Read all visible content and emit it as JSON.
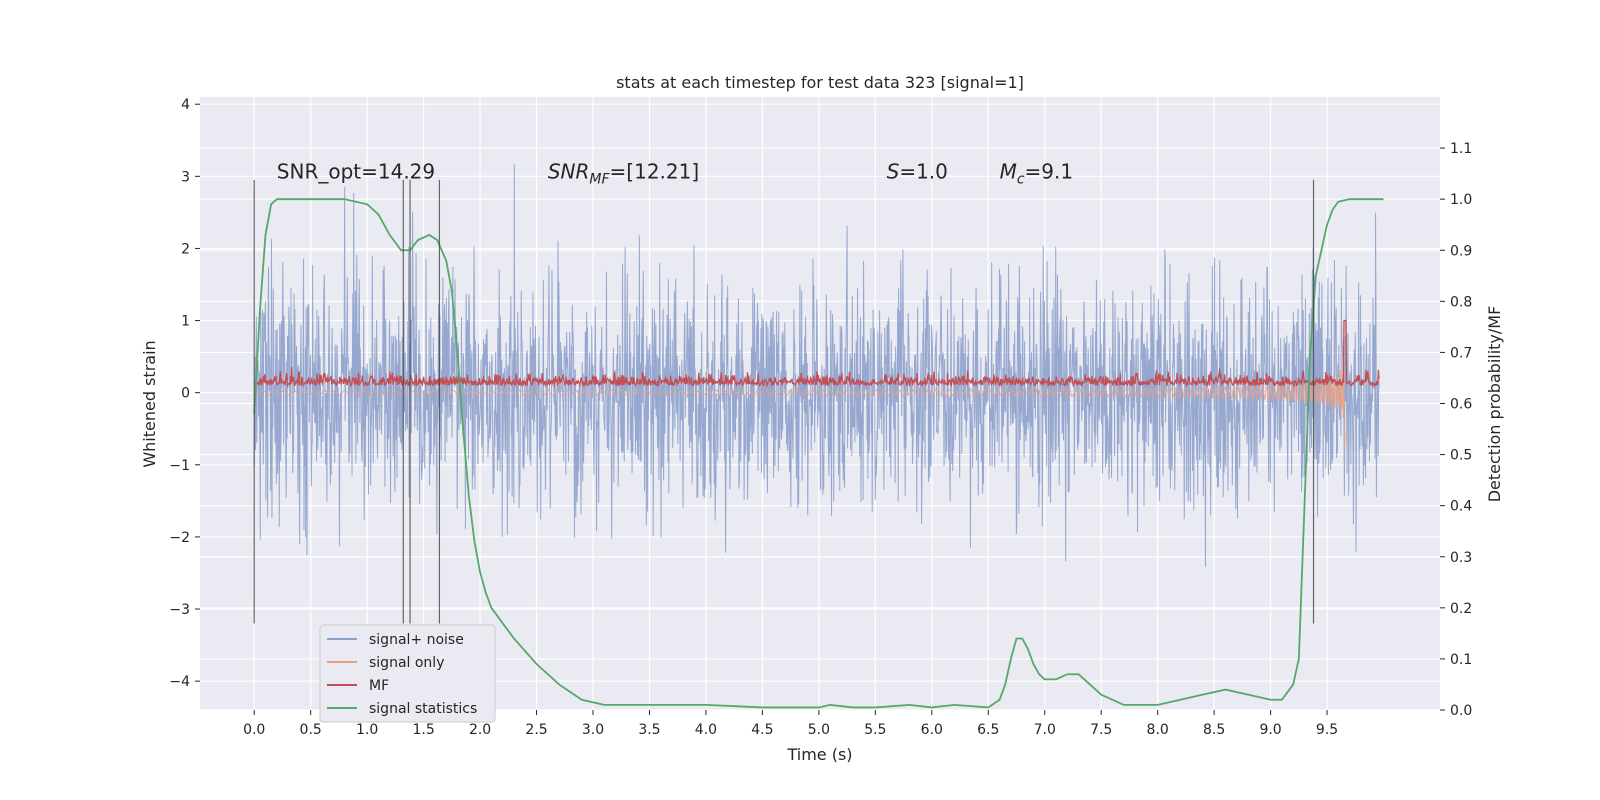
{
  "chart_data": {
    "type": "line",
    "title": "stats at each timestep for test data 323 [signal=1]",
    "xlabel": "Time (s)",
    "ylabel": "Whitened strain",
    "y2label": "Detection probability/MF",
    "xlim": [
      -0.48,
      10.5
    ],
    "ylim": [
      -4.4,
      4.1
    ],
    "y2lim": [
      -0.0,
      1.2
    ],
    "xticks": [
      0.0,
      0.5,
      1.0,
      1.5,
      2.0,
      2.5,
      3.0,
      3.5,
      4.0,
      4.5,
      5.0,
      5.5,
      6.0,
      6.5,
      7.0,
      7.5,
      8.0,
      8.5,
      9.0,
      9.5
    ],
    "xtick_labels": [
      "0.0",
      "0.5",
      "1.0",
      "1.5",
      "2.0",
      "2.5",
      "3.0",
      "3.5",
      "4.0",
      "4.5",
      "5.0",
      "5.5",
      "6.0",
      "6.5",
      "7.0",
      "7.5",
      "8.0",
      "8.5",
      "9.0",
      "9.5"
    ],
    "yticks": [
      -4,
      -3,
      -2,
      -1,
      0,
      1,
      2,
      3,
      4
    ],
    "ytick_labels": [
      "−4",
      "−3",
      "−2",
      "−1",
      "0",
      "1",
      "2",
      "3",
      "4"
    ],
    "y2ticks": [
      0.0,
      0.1,
      0.2,
      0.3,
      0.4,
      0.5,
      0.6,
      0.7,
      0.8,
      0.9,
      1.0,
      1.1
    ],
    "y2tick_labels": [
      "0.0",
      "0.1",
      "0.2",
      "0.3",
      "0.4",
      "0.5",
      "0.6",
      "0.7",
      "0.8",
      "0.9",
      "1.0",
      "1.1"
    ],
    "grid": true,
    "legend_position": "lower-left",
    "annotations": [
      {
        "text": "SNR_opt=14.29",
        "x": 0.2,
        "y": 3.0
      },
      {
        "text": "SNR",
        "sub": "MF",
        "rest": "=[12.21]",
        "x": 2.6,
        "y": 3.0,
        "italic": true
      },
      {
        "text": "S",
        "rest": "=1.0",
        "x": 5.6,
        "y": 3.0,
        "italic": true
      },
      {
        "text": "M",
        "sub": "c",
        "rest": "=9.1",
        "x": 6.6,
        "y": 3.0,
        "italic": true
      }
    ],
    "vlines": [
      0.0,
      1.32,
      1.38,
      1.64,
      9.38
    ],
    "vline_range": [
      -3.2,
      2.95
    ],
    "series": [
      {
        "name": "signal+ noise",
        "color": "#8da1cb",
        "noise_std": 0.8,
        "t_start": 0.0,
        "t_end": 9.96
      },
      {
        "name": "signal only",
        "color": "#e8a088",
        "t_start": 0.0,
        "t_end": 9.66,
        "peak_amp": 1.6
      },
      {
        "name": "MF",
        "color": "#c44e52",
        "baseline": 0.1,
        "peak_time": 9.66,
        "peak_value": 1.0
      },
      {
        "name": "signal statistics",
        "color": "#55a868",
        "axis": "y2",
        "x": [
          0.0,
          0.05,
          0.1,
          0.15,
          0.2,
          0.3,
          0.5,
          0.8,
          1.0,
          1.1,
          1.2,
          1.3,
          1.38,
          1.45,
          1.55,
          1.62,
          1.7,
          1.75,
          1.8,
          1.85,
          1.9,
          1.95,
          2.0,
          2.05,
          2.1,
          2.2,
          2.3,
          2.5,
          2.7,
          2.9,
          3.1,
          3.5,
          4.0,
          4.5,
          5.0,
          5.1,
          5.3,
          5.5,
          5.8,
          6.0,
          6.2,
          6.5,
          6.6,
          6.65,
          6.7,
          6.75,
          6.8,
          6.85,
          6.9,
          6.95,
          7.0,
          7.1,
          7.2,
          7.3,
          7.4,
          7.5,
          7.7,
          8.0,
          8.2,
          8.4,
          8.6,
          8.8,
          9.0,
          9.1,
          9.2,
          9.25,
          9.3,
          9.35,
          9.4,
          9.45,
          9.5,
          9.55,
          9.6,
          9.7,
          9.8,
          10.0
        ],
        "y": [
          0.58,
          0.78,
          0.93,
          0.99,
          1.0,
          1.0,
          1.0,
          1.0,
          0.99,
          0.97,
          0.93,
          0.9,
          0.9,
          0.92,
          0.93,
          0.92,
          0.88,
          0.82,
          0.7,
          0.55,
          0.42,
          0.33,
          0.27,
          0.23,
          0.2,
          0.17,
          0.14,
          0.09,
          0.05,
          0.02,
          0.01,
          0.01,
          0.01,
          0.005,
          0.005,
          0.01,
          0.005,
          0.005,
          0.01,
          0.005,
          0.01,
          0.005,
          0.02,
          0.05,
          0.1,
          0.14,
          0.14,
          0.12,
          0.09,
          0.07,
          0.06,
          0.06,
          0.07,
          0.07,
          0.05,
          0.03,
          0.01,
          0.01,
          0.02,
          0.03,
          0.04,
          0.03,
          0.02,
          0.02,
          0.05,
          0.1,
          0.4,
          0.7,
          0.85,
          0.9,
          0.95,
          0.98,
          0.995,
          1.0,
          1.0,
          1.0
        ]
      }
    ]
  }
}
